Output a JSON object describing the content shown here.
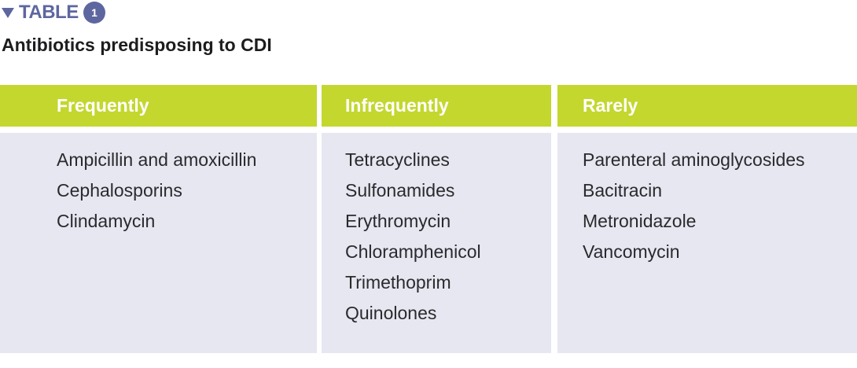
{
  "label": "TABLE",
  "number": "1",
  "title": "Antibiotics predisposing to CDI",
  "columns": [
    {
      "header": "Frequently",
      "items": [
        "Ampicillin and amoxicillin",
        "Cephalosporins",
        "Clindamycin"
      ]
    },
    {
      "header": "Infrequently",
      "items": [
        "Tetracyclines",
        "Sulfonamides",
        "Erythromycin",
        "Chloramphenicol",
        "Trimethoprim",
        "Quinolones"
      ]
    },
    {
      "header": "Rarely",
      "items": [
        "Parenteral aminoglycosides",
        "Bacitracin",
        "Metronidazole",
        "Vancomycin"
      ]
    }
  ]
}
